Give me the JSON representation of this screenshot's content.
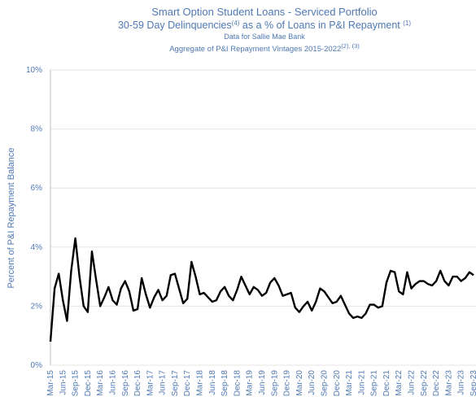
{
  "chart_data": {
    "type": "line",
    "title": "Smart Option Student Loans - Serviced Portfolio",
    "subtitle": {
      "text": "30-59 Day Delinquencies",
      "note": "(4)",
      "text2": " as a % of Loans in P&I Repayment ",
      "note2": "(1)"
    },
    "subtitle2": "Data for Sallie Mae Bank",
    "subtitle3": {
      "text": "Aggregate of P&I Repayment Vintages 2015-2022",
      "note": "(2), (3)"
    },
    "ylabel": "Percent of P&I Repayment  Balance",
    "categories": [
      "Mar-15",
      null,
      null,
      "Jun-15",
      null,
      null,
      "Sep-15",
      null,
      null,
      "Dec-15",
      null,
      null,
      "Mar-16",
      null,
      null,
      "Jun-16",
      null,
      null,
      "Sep-16",
      null,
      null,
      "Dec-16",
      null,
      null,
      "Mar-17",
      null,
      null,
      "Jun-17",
      null,
      null,
      "Sep-17",
      null,
      null,
      "Dec-17",
      null,
      null,
      "Mar-18",
      null,
      null,
      "Jun-18",
      null,
      null,
      "Sep-18",
      null,
      null,
      "Dec-18",
      null,
      null,
      "Mar-19",
      null,
      null,
      "Jun-19",
      null,
      null,
      "Sep-19",
      null,
      null,
      "Dec-19",
      null,
      null,
      "Mar-20",
      null,
      null,
      "Jun-20",
      null,
      null,
      "Sep-20",
      null,
      null,
      "Dec-20",
      null,
      null,
      "Mar-21",
      null,
      null,
      "Jun-21",
      null,
      null,
      "Sep-21",
      null,
      null,
      "Dec-21",
      null,
      null,
      "Mar-22",
      null,
      null,
      "Jun-22",
      null,
      null,
      "Sep-22",
      null,
      null,
      "Dec-22",
      null,
      null,
      "Mar-23",
      null,
      null,
      "Jun-23",
      null,
      null,
      "Sep-23"
    ],
    "series": [
      {
        "color": "#000000",
        "values": [
          0.8,
          2.6,
          3.1,
          2.2,
          1.5,
          3.2,
          4.3,
          3.0,
          2.0,
          1.8,
          3.85,
          2.9,
          2.0,
          2.3,
          2.65,
          2.2,
          2.05,
          2.6,
          2.85,
          2.5,
          1.85,
          1.9,
          2.95,
          2.4,
          1.95,
          2.3,
          2.55,
          2.2,
          2.35,
          3.05,
          3.1,
          2.6,
          2.1,
          2.25,
          3.5,
          3.0,
          2.4,
          2.45,
          2.3,
          2.15,
          2.2,
          2.5,
          2.65,
          2.35,
          2.2,
          2.55,
          3.0,
          2.7,
          2.4,
          2.65,
          2.55,
          2.35,
          2.45,
          2.8,
          2.95,
          2.7,
          2.35,
          2.4,
          2.45,
          1.95,
          1.8,
          2.0,
          2.15,
          1.85,
          2.15,
          2.6,
          2.5,
          2.3,
          2.1,
          2.15,
          2.35,
          2.05,
          1.75,
          1.6,
          1.65,
          1.6,
          1.75,
          2.05,
          2.05,
          1.95,
          2.0,
          2.8,
          3.2,
          3.15,
          2.5,
          2.4,
          3.15,
          2.6,
          2.75,
          2.85,
          2.85,
          2.75,
          2.7,
          2.85,
          3.2,
          2.85,
          2.7,
          3.0,
          3.0,
          2.85,
          2.95,
          3.15,
          3.05
        ]
      }
    ],
    "ylim": [
      0,
      10
    ],
    "yticks": [
      {
        "value": 0,
        "label": "0%"
      },
      {
        "value": 2,
        "label": "2%"
      },
      {
        "value": 4,
        "label": "4%"
      },
      {
        "value": 6,
        "label": "6%"
      },
      {
        "value": 8,
        "label": "8%"
      },
      {
        "value": 10,
        "label": "10%"
      }
    ],
    "grid": true
  }
}
